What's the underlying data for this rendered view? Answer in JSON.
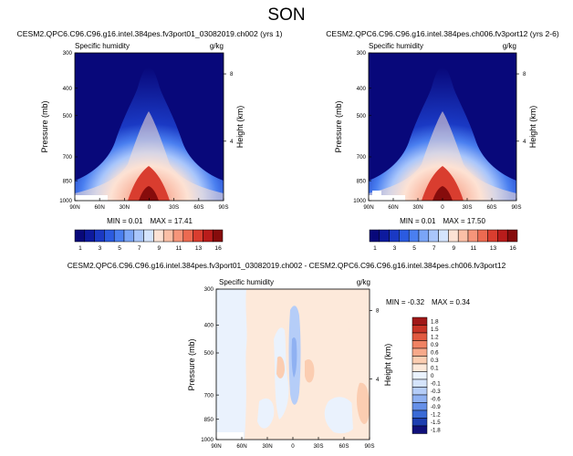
{
  "page": {
    "title": "SON"
  },
  "colors": {
    "level_scale": [
      "#08087a",
      "#0d1a9e",
      "#1a39c4",
      "#2b5be0",
      "#4a7ff0",
      "#7aa5f7",
      "#a9c6fb",
      "#d4e4fd",
      "#fde2d4",
      "#fbbfa6",
      "#f6957a",
      "#ec6a51",
      "#d93d2f",
      "#b91c1b",
      "#860c0c"
    ],
    "diff_scale": [
      "#10107a",
      "#1d3fb0",
      "#3a6ad6",
      "#6690e8",
      "#8fb1f2",
      "#b5cdf8",
      "#d5e4fb",
      "#eaf2fd",
      "#fde9da",
      "#fbcdb1",
      "#f7a98a",
      "#f08263",
      "#e25a40",
      "#c83426",
      "#a01818"
    ]
  },
  "chart_data": [
    {
      "type": "heatmap",
      "name": "yrs1",
      "title": "CESM2.QPC6.C96.C96.g16.intel.384pes.fv3port01_03082019.ch002 (yrs 1)",
      "field_label": "Specific humidity",
      "units": "g/kg",
      "ylabel": "Pressure (mb)",
      "ylabel_right": "Height (km)",
      "x_ticks": [
        "90N",
        "60N",
        "30N",
        "0",
        "30S",
        "60S",
        "90S"
      ],
      "y_ticks": [
        "300",
        "400",
        "500",
        "700",
        "850",
        "1000"
      ],
      "y_tick_values": [
        300,
        400,
        500,
        700,
        850,
        1000
      ],
      "height_ticks": [
        "8",
        "4"
      ],
      "height_tick_pressures": [
        356,
        616
      ],
      "xlim": [
        90,
        -90
      ],
      "ylim": [
        1000,
        300
      ],
      "min_label": "MIN = ",
      "min_value": "0.01",
      "max_label": "MAX = ",
      "max_value": "17.41",
      "surface_gap": {
        "from": 72,
        "to": 48
      }
    },
    {
      "type": "heatmap",
      "name": "yrs26",
      "title": "CESM2.QPC6.C96.C96.g16.intel.384pes.ch006.fv3port12 (yrs 2-6)",
      "field_label": "Specific humidity",
      "units": "g/kg",
      "ylabel": "Pressure (mb)",
      "ylabel_right": "Height (km)",
      "x_ticks": [
        "90N",
        "60N",
        "30N",
        "0",
        "30S",
        "60S",
        "90S"
      ],
      "y_ticks": [
        "300",
        "400",
        "500",
        "700",
        "850",
        "1000"
      ],
      "y_tick_values": [
        300,
        400,
        500,
        700,
        850,
        1000
      ],
      "height_ticks": [
        "8",
        "4"
      ],
      "height_tick_pressures": [
        356,
        616
      ],
      "xlim": [
        90,
        -90
      ],
      "ylim": [
        1000,
        300
      ],
      "min_label": "MIN = ",
      "min_value": "0.01",
      "max_label": "MAX = ",
      "max_value": "17.50",
      "surface_gap": {
        "from": 70,
        "to": 50
      }
    },
    {
      "type": "colorbar",
      "name": "level-colorbar",
      "labels": [
        "1",
        "3",
        "5",
        "7",
        "9",
        "11",
        "13",
        "16"
      ]
    },
    {
      "type": "heatmap",
      "name": "difference",
      "title": "CESM2.QPC6.C96.C96.g16.intel.384pes.fv3port01_03082019.ch002 - CESM2.QPC6.C96.C96.g16.intel.384pes.ch006.fv3port12",
      "field_label": "Specific humidity",
      "units": "g/kg",
      "ylabel": "Pressure (mb)",
      "ylabel_right": "Height (km)",
      "x_ticks": [
        "90N",
        "60N",
        "30N",
        "0",
        "30S",
        "60S",
        "90S"
      ],
      "y_ticks": [
        "300",
        "400",
        "500",
        "700",
        "850",
        "1000"
      ],
      "y_tick_values": [
        300,
        400,
        500,
        700,
        850,
        1000
      ],
      "height_ticks": [
        "8",
        "4"
      ],
      "height_tick_pressures": [
        356,
        616
      ],
      "xlim": [
        90,
        -90
      ],
      "ylim": [
        1000,
        300
      ],
      "min_label": "MIN = ",
      "min_value": "-0.32",
      "max_label": "MAX = ",
      "max_value": "0.34",
      "surface_gap": {
        "from": 90,
        "to": 72
      }
    },
    {
      "type": "colorbar",
      "name": "difference-colorbar",
      "labels": [
        "1.8",
        "1.5",
        "1.2",
        "0.9",
        "0.6",
        "0.3",
        "0.1",
        "0",
        "-0.1",
        "-0.3",
        "-0.6",
        "-0.9",
        "-1.2",
        "-1.5",
        "-1.8"
      ]
    }
  ]
}
